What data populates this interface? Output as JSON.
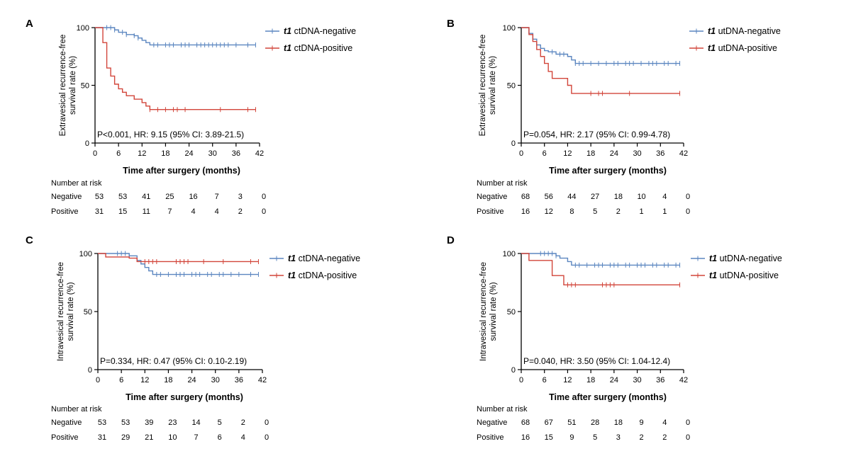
{
  "colors": {
    "negative": "#5b86c0",
    "positive": "#d2453a",
    "axis": "#000000"
  },
  "chart_data": [
    {
      "panel": "A",
      "type": "line",
      "step": true,
      "ylabel": [
        "Extravesical recurrence-free",
        "survival rate (%)"
      ],
      "xlabel": "Time after surgery (months)",
      "xlim": [
        0,
        42
      ],
      "ylim": [
        0,
        100
      ],
      "xticks": [
        0,
        6,
        12,
        18,
        24,
        30,
        36,
        42
      ],
      "yticks": [
        0,
        50,
        100
      ],
      "stat_text": "P<0.001, HR: 9.15 (95% CI: 3.89-21.5)",
      "series": [
        {
          "italic": "t1",
          "name": " ctDNA-negative",
          "x": [
            0,
            5,
            6,
            8,
            10,
            11,
            12,
            13,
            14,
            41
          ],
          "y": [
            100,
            98,
            96,
            94,
            93,
            91,
            89,
            87,
            85,
            85
          ],
          "censor": [
            3,
            4,
            5,
            7,
            8,
            10,
            11,
            15,
            16,
            18,
            19,
            20,
            22,
            23,
            24,
            26,
            27,
            28,
            29,
            30,
            31,
            32,
            33,
            34,
            36,
            39,
            41
          ]
        },
        {
          "italic": "t1",
          "name": " ctDNA-positive",
          "x": [
            0,
            2,
            3,
            4,
            5,
            6,
            7,
            8,
            10,
            12,
            13,
            14,
            41
          ],
          "y": [
            100,
            87,
            65,
            58,
            51,
            47,
            44,
            41,
            38,
            35,
            32,
            29,
            29
          ],
          "censor": [
            14,
            16,
            18,
            20,
            21,
            23,
            32,
            39,
            41
          ]
        }
      ],
      "risk_table": {
        "title": "Number at risk",
        "rows": [
          {
            "label": "Negative",
            "values": [
              "53",
              "53",
              "41",
              "25",
              "16",
              "7",
              "3",
              "0"
            ]
          },
          {
            "label": "Positive",
            "values": [
              "31",
              "15",
              "11",
              "7",
              "4",
              "4",
              "2",
              "0"
            ]
          }
        ]
      }
    },
    {
      "panel": "B",
      "type": "line",
      "step": true,
      "ylabel": [
        "Extravesical recurrence-free",
        "survival rate (%)"
      ],
      "xlabel": "Time after surgery (months)",
      "xlim": [
        0,
        42
      ],
      "ylim": [
        0,
        100
      ],
      "xticks": [
        0,
        6,
        12,
        18,
        24,
        30,
        36,
        42
      ],
      "yticks": [
        0,
        50,
        100
      ],
      "stat_text": "P=0.054, HR: 2.17 (95% CI: 0.99-4.78)",
      "series": [
        {
          "italic": "t1",
          "name": " utDNA-negative",
          "x": [
            0,
            2,
            3,
            4,
            5,
            6,
            7,
            9,
            12,
            13,
            14,
            41
          ],
          "y": [
            100,
            95,
            90,
            85,
            82,
            80,
            79,
            77,
            75,
            72,
            69,
            69
          ],
          "censor": [
            8,
            10,
            11,
            14,
            15,
            16,
            18,
            20,
            22,
            24,
            25,
            27,
            28,
            29,
            31,
            33,
            34,
            35,
            37,
            38,
            40,
            41
          ]
        },
        {
          "italic": "t1",
          "name": " utDNA-positive",
          "x": [
            0,
            2,
            3,
            4,
            5,
            6,
            7,
            8,
            12,
            13,
            41
          ],
          "y": [
            100,
            94,
            88,
            81,
            75,
            69,
            62,
            56,
            50,
            43,
            43
          ],
          "censor": [
            18,
            20,
            21,
            28,
            41
          ]
        }
      ],
      "risk_table": {
        "title": "Number at risk",
        "rows": [
          {
            "label": "Negative",
            "values": [
              "68",
              "56",
              "44",
              "27",
              "18",
              "10",
              "4",
              "0"
            ]
          },
          {
            "label": "Positive",
            "values": [
              "16",
              "12",
              "8",
              "5",
              "2",
              "1",
              "1",
              "0"
            ]
          }
        ]
      }
    },
    {
      "panel": "C",
      "type": "line",
      "step": true,
      "ylabel": [
        "Intravesical recurrence-free",
        "survival rate (%)"
      ],
      "xlabel": "Time after surgery (months)",
      "xlim": [
        0,
        42
      ],
      "ylim": [
        0,
        100
      ],
      "xticks": [
        0,
        6,
        12,
        18,
        24,
        30,
        36,
        42
      ],
      "yticks": [
        0,
        50,
        100
      ],
      "stat_text": "P=0.334, HR: 0.47 (95% CI: 0.10-2.19)",
      "series": [
        {
          "italic": "t1",
          "name": " ctDNA-negative",
          "x": [
            0,
            8,
            10,
            11,
            12,
            13,
            14,
            41
          ],
          "y": [
            100,
            98,
            94,
            91,
            88,
            85,
            82,
            82
          ],
          "censor": [
            5,
            6,
            7,
            8,
            15,
            16,
            18,
            20,
            21,
            22,
            24,
            25,
            26,
            28,
            29,
            31,
            32,
            34,
            36,
            39,
            41
          ]
        },
        {
          "italic": "t1",
          "name": " ctDNA-positive",
          "x": [
            0,
            2,
            8,
            10,
            41
          ],
          "y": [
            100,
            97,
            96,
            93,
            93
          ],
          "censor": [
            12,
            13,
            14,
            15,
            20,
            21,
            22,
            23,
            27,
            32,
            39,
            41
          ]
        }
      ],
      "risk_table": {
        "title": "Number at risk",
        "rows": [
          {
            "label": "Negative",
            "values": [
              "53",
              "53",
              "39",
              "23",
              "14",
              "5",
              "2",
              "0"
            ]
          },
          {
            "label": "Positive",
            "values": [
              "31",
              "29",
              "21",
              "10",
              "7",
              "6",
              "4",
              "0"
            ]
          }
        ]
      }
    },
    {
      "panel": "D",
      "type": "line",
      "step": true,
      "ylabel": [
        "Intravesical recurrence-free",
        "survival rate (%)"
      ],
      "xlabel": "Time after surgery (months)",
      "xlim": [
        0,
        42
      ],
      "ylim": [
        0,
        100
      ],
      "xticks": [
        0,
        6,
        12,
        18,
        24,
        30,
        36,
        42
      ],
      "yticks": [
        0,
        50,
        100
      ],
      "stat_text": "P=0.040, HR: 3.50 (95% CI: 1.04-12.4)",
      "series": [
        {
          "italic": "t1",
          "name": " utDNA-negative",
          "x": [
            0,
            9,
            10,
            12,
            13,
            41
          ],
          "y": [
            100,
            98,
            96,
            93,
            90,
            90
          ],
          "censor": [
            5,
            6,
            7,
            8,
            9,
            14,
            15,
            17,
            19,
            20,
            21,
            23,
            24,
            25,
            27,
            28,
            30,
            31,
            32,
            34,
            35,
            37,
            38,
            40,
            41
          ]
        },
        {
          "italic": "t1",
          "name": " utDNA-positive",
          "x": [
            0,
            2,
            8,
            11,
            41
          ],
          "y": [
            100,
            94,
            81,
            73,
            73
          ],
          "censor": [
            12,
            13,
            14,
            21,
            22,
            23,
            24,
            41
          ]
        }
      ],
      "risk_table": {
        "title": "Number at risk",
        "rows": [
          {
            "label": "Negative",
            "values": [
              "68",
              "67",
              "51",
              "28",
              "18",
              "9",
              "4",
              "0"
            ]
          },
          {
            "label": "Positive",
            "values": [
              "16",
              "15",
              "9",
              "5",
              "3",
              "2",
              "2",
              "0"
            ]
          }
        ]
      }
    }
  ]
}
